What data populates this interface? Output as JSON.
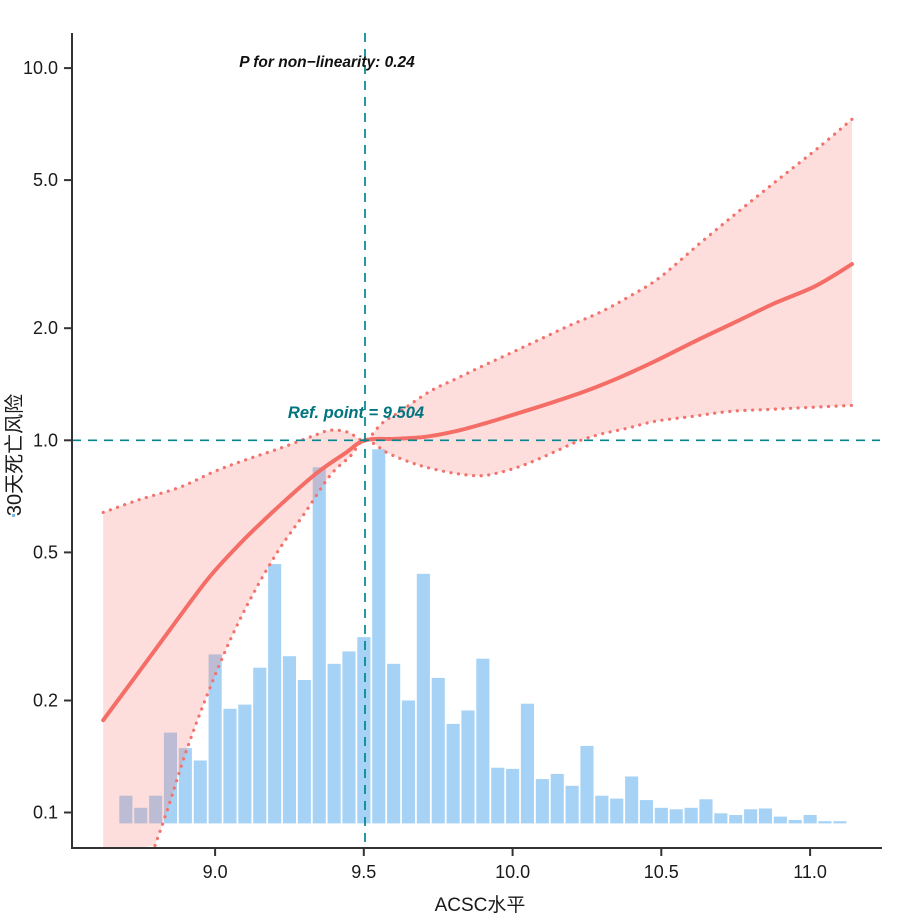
{
  "annotations": {
    "p_nonlinearity": {
      "text": "P for non−linearity: 0.24",
      "value": 0.24
    },
    "ref_point": {
      "text": "Ref. point = 9.504",
      "value": 9.504
    }
  },
  "axes": {
    "x": {
      "title": "ACSC水平",
      "range": [
        8.519,
        11.235
      ],
      "ticks": [
        {
          "v": 9.0,
          "label": "9.0"
        },
        {
          "v": 9.5,
          "label": "9.5"
        },
        {
          "v": 10.0,
          "label": "10.0"
        },
        {
          "v": 10.5,
          "label": "10.5"
        },
        {
          "v": 11.0,
          "label": "11.0"
        }
      ]
    },
    "y": {
      "title": "30天死亡风险",
      "scale": "log10",
      "range": [
        0.0803,
        12.27
      ],
      "ticks": [
        {
          "v": 10.0,
          "label": "10.0"
        },
        {
          "v": 5.0,
          "label": "5.0"
        },
        {
          "v": 2.0,
          "label": "2.0"
        },
        {
          "v": 1.0,
          "label": "1.0"
        },
        {
          "v": 0.5,
          "label": "0.5"
        },
        {
          "v": 0.2,
          "label": "0.2"
        },
        {
          "v": 0.1,
          "label": "0.1"
        }
      ]
    }
  },
  "colors": {
    "axis": "#333333",
    "tick_text": "#1a1a1a",
    "bar": "#a6d2f5",
    "curve": "#f46d66",
    "ci_dot": "#f2736d",
    "ci_fill": "rgba(246,133,127,0.27)",
    "reference_line": "#00868f",
    "ref_text": "#00757f",
    "stray_mark": "#7ab8e8"
  },
  "chart_data": {
    "type": "line",
    "xlabel": "ACSC水平",
    "ylabel": "30天死亡风险",
    "x_range": [
      8.519,
      11.235
    ],
    "y_scale": "log10",
    "y_range": [
      0.0803,
      12.27
    ],
    "grid": false,
    "legend": false,
    "reference_point_x": 9.504,
    "reference_hr": 1.0,
    "series": [
      {
        "name": "spline_hazard_ratio",
        "style": "solid",
        "points": [
          [
            8.624,
            0.177
          ],
          [
            8.748,
            0.241
          ],
          [
            8.866,
            0.324
          ],
          [
            8.983,
            0.431
          ],
          [
            9.101,
            0.545
          ],
          [
            9.218,
            0.669
          ],
          [
            9.336,
            0.81
          ],
          [
            9.437,
            0.923
          ],
          [
            9.504,
            1.0
          ],
          [
            9.605,
            1.009
          ],
          [
            9.706,
            1.022
          ],
          [
            9.807,
            1.057
          ],
          [
            9.908,
            1.111
          ],
          [
            10.008,
            1.175
          ],
          [
            10.126,
            1.258
          ],
          [
            10.244,
            1.354
          ],
          [
            10.361,
            1.477
          ],
          [
            10.479,
            1.631
          ],
          [
            10.613,
            1.845
          ],
          [
            10.748,
            2.076
          ],
          [
            10.882,
            2.336
          ],
          [
            11.017,
            2.594
          ],
          [
            11.141,
            2.974
          ]
        ]
      },
      {
        "name": "ci_upper",
        "style": "dotted",
        "points": [
          [
            8.624,
            0.64
          ],
          [
            8.748,
            0.694
          ],
          [
            8.882,
            0.748
          ],
          [
            9.0,
            0.826
          ],
          [
            9.108,
            0.889
          ],
          [
            9.218,
            0.952
          ],
          [
            9.326,
            1.025
          ],
          [
            9.387,
            1.064
          ],
          [
            9.447,
            1.051
          ],
          [
            9.504,
            1.0
          ],
          [
            9.561,
            1.111
          ],
          [
            9.622,
            1.196
          ],
          [
            9.723,
            1.355
          ],
          [
            9.807,
            1.459
          ],
          [
            9.891,
            1.572
          ],
          [
            9.992,
            1.713
          ],
          [
            10.092,
            1.868
          ],
          [
            10.193,
            2.037
          ],
          [
            10.294,
            2.208
          ],
          [
            10.395,
            2.441
          ],
          [
            10.496,
            2.742
          ],
          [
            10.63,
            3.385
          ],
          [
            10.765,
            4.155
          ],
          [
            10.899,
            5.062
          ],
          [
            11.034,
            6.167
          ],
          [
            11.141,
            7.29
          ]
        ]
      },
      {
        "name": "ci_lower",
        "style": "dotted",
        "points": [
          [
            8.798,
            0.0815
          ],
          [
            8.842,
            0.103
          ],
          [
            8.899,
            0.143
          ],
          [
            8.966,
            0.2
          ],
          [
            9.05,
            0.29
          ],
          [
            9.134,
            0.395
          ],
          [
            9.218,
            0.513
          ],
          [
            9.303,
            0.64
          ],
          [
            9.387,
            0.805
          ],
          [
            9.454,
            0.906
          ],
          [
            9.504,
            1.0
          ],
          [
            9.582,
            0.923
          ],
          [
            9.656,
            0.873
          ],
          [
            9.723,
            0.841
          ],
          [
            9.807,
            0.815
          ],
          [
            9.891,
            0.803
          ],
          [
            9.958,
            0.82
          ],
          [
            10.025,
            0.851
          ],
          [
            10.092,
            0.894
          ],
          [
            10.16,
            0.946
          ],
          [
            10.22,
            0.994
          ],
          [
            10.294,
            1.038
          ],
          [
            10.385,
            1.077
          ],
          [
            10.479,
            1.125
          ],
          [
            10.607,
            1.16
          ],
          [
            10.731,
            1.196
          ],
          [
            10.866,
            1.211
          ],
          [
            11.0,
            1.226
          ],
          [
            11.141,
            1.241
          ]
        ]
      }
    ],
    "histogram": {
      "note": "distribution of ACSC levels; bar heights read off the shared log y-axis (scaled counts), baseline 0.0935",
      "bin_start": 8.675,
      "bin_width": 0.05,
      "baseline": 0.0935,
      "values": [
        0.111,
        0.103,
        0.111,
        0.164,
        0.149,
        0.138,
        0.266,
        0.19,
        0.195,
        0.245,
        0.465,
        0.263,
        0.227,
        0.846,
        0.251,
        0.271,
        0.296,
        0.946,
        0.251,
        0.2,
        0.438,
        0.23,
        0.173,
        0.188,
        0.259,
        0.132,
        0.131,
        0.196,
        0.123,
        0.127,
        0.118,
        0.151,
        0.111,
        0.109,
        0.125,
        0.108,
        0.103,
        0.102,
        0.103,
        0.1085,
        0.0995,
        0.0985,
        0.102,
        0.1025,
        0.0975,
        0.0955,
        0.0985,
        0.0948,
        0.0948
      ]
    }
  }
}
